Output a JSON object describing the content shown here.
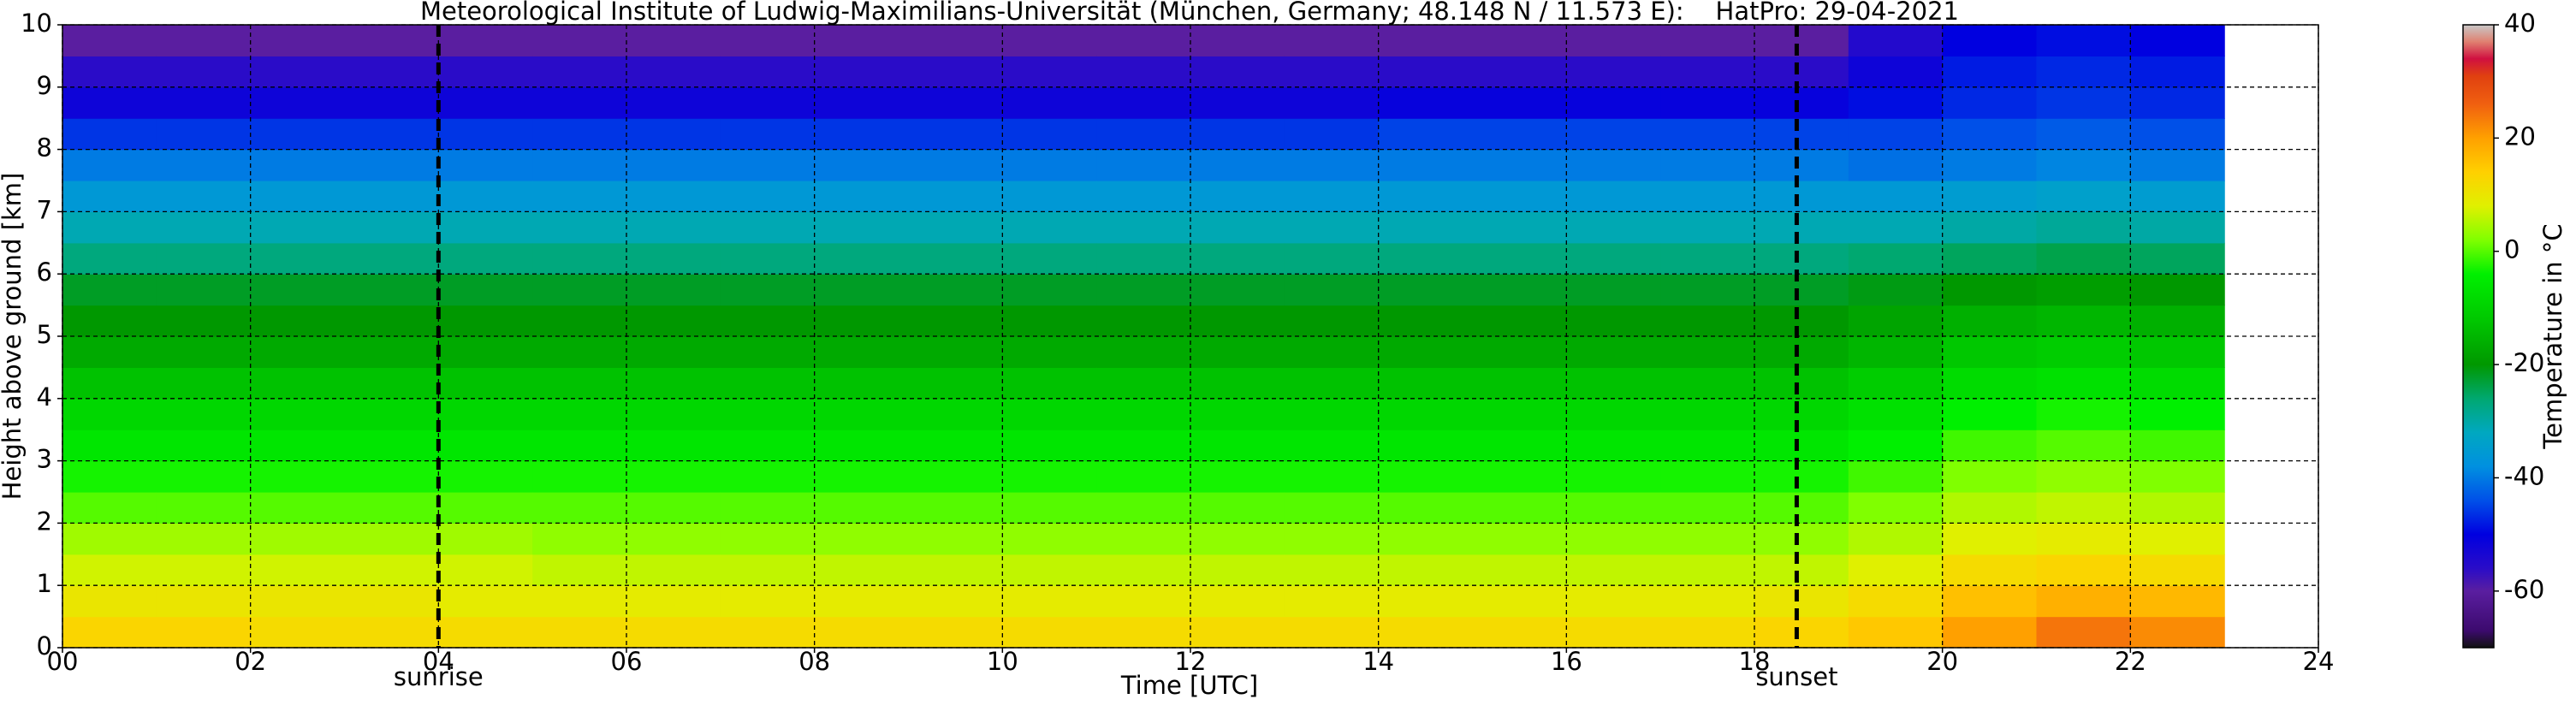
{
  "chart_data": {
    "type": "heatmap",
    "title": "Meteorological Institute of Ludwig-Maximilians-Universität (München, Germany; 48.148 N / 11.573 E):    HatPro: 29-04-2021",
    "xlabel": "Time [UTC]",
    "ylabel": "Height above ground [km]",
    "colorbar_label": "Temperature in °C",
    "xlim": [
      0,
      24
    ],
    "ylim": [
      0,
      10
    ],
    "clim": [
      -70,
      40
    ],
    "xticks": [
      {
        "value": 0,
        "label": "00"
      },
      {
        "value": 2,
        "label": "02"
      },
      {
        "value": 4,
        "label": "04"
      },
      {
        "value": 6,
        "label": "06"
      },
      {
        "value": 8,
        "label": "08"
      },
      10,
      12,
      14,
      16,
      18,
      20,
      22,
      24
    ],
    "yticks": [
      0,
      1,
      2,
      3,
      4,
      5,
      6,
      7,
      8,
      9,
      10
    ],
    "cticks": [
      -60,
      -40,
      -20,
      0,
      20,
      40
    ],
    "grid": true,
    "colormap": [
      [
        -70,
        "#111111"
      ],
      [
        -67,
        "#3c0a6e"
      ],
      [
        -60,
        "#5a1ea0"
      ],
      [
        -56,
        "#2a0cc8"
      ],
      [
        -50,
        "#0000e0"
      ],
      [
        -44,
        "#0050e8"
      ],
      [
        -38,
        "#0090e0"
      ],
      [
        -32,
        "#00a8c0"
      ],
      [
        -26,
        "#00a870"
      ],
      [
        -20,
        "#009800"
      ],
      [
        -12,
        "#00c800"
      ],
      [
        -4,
        "#00f000"
      ],
      [
        2,
        "#80ff00"
      ],
      [
        8,
        "#e0f000"
      ],
      [
        14,
        "#ffd000"
      ],
      [
        20,
        "#ffa000"
      ],
      [
        26,
        "#f06010"
      ],
      [
        31,
        "#e04010"
      ],
      [
        34,
        "#d01040"
      ],
      [
        37,
        "#e08070"
      ],
      [
        40,
        "#c8c8c8"
      ]
    ],
    "annotations": [
      {
        "text": "sunrise",
        "x": 4.0
      },
      {
        "text": "sunset",
        "x": 18.45
      }
    ],
    "x_edges": [
      0,
      1,
      2,
      3,
      4,
      5,
      6,
      7,
      8,
      9,
      10,
      11,
      12,
      13,
      14,
      15,
      16,
      17,
      18,
      19,
      20,
      21,
      22,
      23
    ],
    "y_edges": [
      0,
      0.5,
      1,
      1.5,
      2,
      2.5,
      3,
      3.5,
      4,
      4.5,
      5,
      5.5,
      6,
      6.5,
      7,
      7.5,
      8,
      8.5,
      9,
      9.5,
      10
    ],
    "z": [
      [
        13,
        10,
        7,
        4,
        0,
        -3,
        -6,
        -9,
        -13,
        -17,
        -20,
        -22,
        -27,
        -31,
        -36,
        -40,
        -46,
        -52,
        -56,
        -60
      ],
      [
        13,
        10,
        7,
        4,
        0,
        -3,
        -6,
        -9,
        -13,
        -17,
        -20,
        -22,
        -27,
        -31,
        -36,
        -40,
        -46,
        -52,
        -56,
        -60
      ],
      [
        12,
        10,
        7,
        4,
        0,
        -3,
        -6,
        -9,
        -13,
        -17,
        -20,
        -22,
        -27,
        -31,
        -36,
        -40,
        -46,
        -52,
        -56,
        -60
      ],
      [
        12,
        10,
        7,
        4,
        0,
        -3,
        -6,
        -9,
        -13,
        -17,
        -20,
        -22,
        -27,
        -31,
        -36,
        -40,
        -46,
        -52,
        -56,
        -60
      ],
      [
        12,
        9,
        7,
        4,
        0,
        -3,
        -6,
        -9,
        -13,
        -17,
        -20,
        -22,
        -27,
        -31,
        -36,
        -40,
        -46,
        -52,
        -56,
        -60
      ],
      [
        12,
        9,
        6,
        3,
        0,
        -3,
        -6,
        -9,
        -13,
        -17,
        -20,
        -22,
        -27,
        -31,
        -36,
        -40,
        -46,
        -52,
        -56,
        -60
      ],
      [
        12,
        9,
        6,
        3,
        0,
        -3,
        -6,
        -9,
        -13,
        -17,
        -20,
        -22,
        -27,
        -31,
        -36,
        -40,
        -46,
        -52,
        -56,
        -60
      ],
      [
        12,
        9,
        6,
        3,
        0,
        -3,
        -6,
        -9,
        -13,
        -17,
        -20,
        -22,
        -27,
        -31,
        -36,
        -40,
        -46,
        -52,
        -56,
        -60
      ],
      [
        12,
        9,
        6,
        3,
        0,
        -3,
        -6,
        -9,
        -13,
        -17,
        -20,
        -22,
        -27,
        -31,
        -36,
        -40,
        -46,
        -52,
        -56,
        -60
      ],
      [
        12,
        9,
        6,
        3,
        0,
        -3,
        -6,
        -9,
        -13,
        -17,
        -20,
        -22,
        -27,
        -31,
        -36,
        -40,
        -46,
        -52,
        -56,
        -60
      ],
      [
        12,
        9,
        6,
        3,
        0,
        -3,
        -6,
        -9,
        -13,
        -17,
        -20,
        -22,
        -27,
        -31,
        -36,
        -40,
        -46,
        -52,
        -56,
        -60
      ],
      [
        12,
        9,
        6,
        3,
        0,
        -3,
        -6,
        -9,
        -13,
        -17,
        -20,
        -22,
        -27,
        -31,
        -36,
        -40,
        -46,
        -52,
        -56,
        -60
      ],
      [
        12,
        9,
        6,
        3,
        0,
        -3,
        -6,
        -9,
        -13,
        -17,
        -20,
        -22,
        -27,
        -31,
        -36,
        -40,
        -46,
        -52,
        -56,
        -60
      ],
      [
        12,
        9,
        6,
        3,
        0,
        -3,
        -6,
        -9,
        -13,
        -17,
        -20,
        -22,
        -27,
        -31,
        -36,
        -40,
        -46,
        -52,
        -56,
        -60
      ],
      [
        12,
        9,
        6,
        3,
        0,
        -3,
        -6,
        -9,
        -13,
        -17,
        -20,
        -22,
        -27,
        -31,
        -36,
        -40,
        -45,
        -51,
        -56,
        -60
      ],
      [
        12,
        9,
        6,
        3,
        0,
        -3,
        -6,
        -9,
        -13,
        -17,
        -20,
        -22,
        -27,
        -31,
        -36,
        -40,
        -45,
        -51,
        -56,
        -60
      ],
      [
        12,
        9,
        6,
        3,
        0,
        -3,
        -6,
        -9,
        -13,
        -17,
        -20,
        -22,
        -27,
        -31,
        -36,
        -40,
        -45,
        -51,
        -56,
        -60
      ],
      [
        12,
        9,
        6,
        3,
        0,
        -3,
        -6,
        -9,
        -13,
        -17,
        -20,
        -22,
        -27,
        -31,
        -36,
        -40,
        -45,
        -51,
        -56,
        -60
      ],
      [
        13,
        10,
        6,
        3,
        0,
        -3,
        -6,
        -9,
        -13,
        -17,
        -20,
        -22,
        -27,
        -31,
        -36,
        -40,
        -45,
        -51,
        -56,
        -60
      ],
      [
        15,
        12,
        8,
        5,
        2,
        -1,
        -4,
        -7,
        -11,
        -15,
        -18,
        -21,
        -26,
        -31,
        -36,
        -41,
        -45,
        -49,
        -52,
        -55
      ],
      [
        20,
        16,
        12,
        8,
        5,
        2,
        -1,
        -4,
        -8,
        -12,
        -16,
        -20,
        -25,
        -30,
        -35,
        -40,
        -44,
        -47,
        -48,
        -50
      ],
      [
        24,
        18,
        13,
        9,
        6,
        3,
        0,
        -3,
        -7,
        -11,
        -15,
        -19,
        -24,
        -29,
        -34,
        -39,
        -43,
        -46,
        -47,
        -49
      ],
      [
        22,
        17,
        12,
        8,
        5,
        2,
        -1,
        -4,
        -8,
        -12,
        -16,
        -20,
        -25,
        -30,
        -35,
        -40,
        -44,
        -47,
        -48,
        -50
      ]
    ]
  }
}
